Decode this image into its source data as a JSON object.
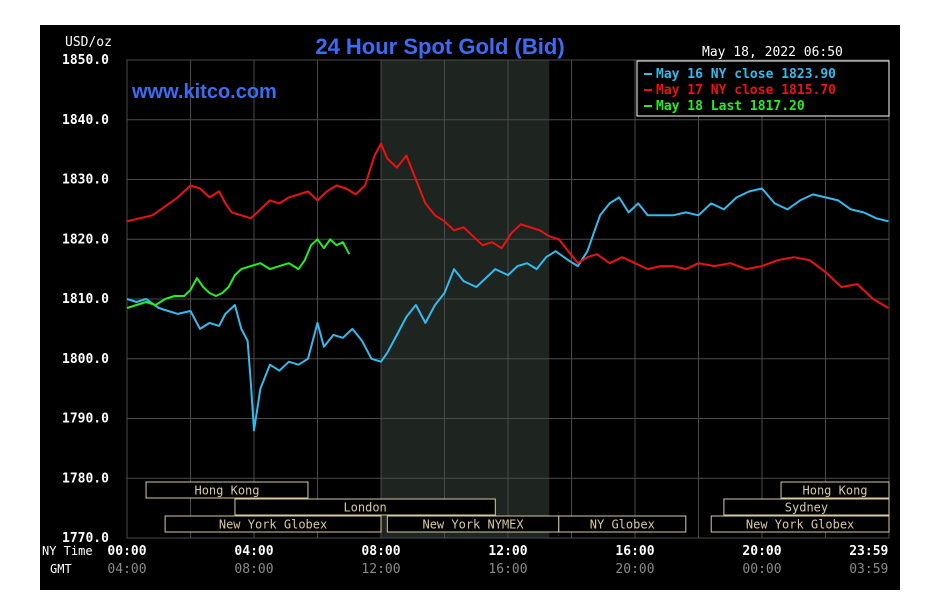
{
  "chart_data": {
    "type": "line",
    "title": "24 Hour Spot Gold (Bid)",
    "unit": "USD/oz",
    "source": "www.kitco.com",
    "datetime": "May 18, 2022 06:50",
    "ylim": [
      1770,
      1850
    ],
    "y_ticks": [
      "1850.0",
      "1840.0",
      "1830.0",
      "1820.0",
      "1810.0",
      "1800.0",
      "1790.0",
      "1780.0",
      "1770.0"
    ],
    "x_row_label_ny": "NY Time",
    "x_row_label_gmt": "GMT",
    "x_ticks_ny": [
      "00:00",
      "04:00",
      "08:00",
      "12:00",
      "16:00",
      "20:00",
      "23:59"
    ],
    "x_ticks_gmt": [
      "04:00",
      "08:00",
      "12:00",
      "16:00",
      "20:00",
      "00:00",
      "03:59"
    ],
    "x_tick_hours": [
      0,
      4,
      8,
      12,
      16,
      20,
      23.98
    ],
    "grid": true,
    "legend_position": "top-right",
    "nymex_shade": [
      8,
      13.3
    ],
    "sessions": [
      {
        "label": "Hong Kong",
        "start": 0.6,
        "end": 5.7,
        "row": 0
      },
      {
        "label": "London",
        "start": 3.4,
        "end": 11.6,
        "row": 1
      },
      {
        "label": "New York Globex",
        "start": 1.2,
        "end": 8.0,
        "row": 2
      },
      {
        "label": "New York NYMEX",
        "start": 8.2,
        "end": 13.6,
        "row": 2
      },
      {
        "label": "NY Globex",
        "start": 13.6,
        "end": 17.6,
        "row": 2
      },
      {
        "label": "Hong Kong",
        "start": 20.6,
        "end": 24.0,
        "row": 0
      },
      {
        "label": "Sydney",
        "start": 18.8,
        "end": 24.0,
        "row": 1
      },
      {
        "label": "New York Globex",
        "start": 18.4,
        "end": 24.0,
        "row": 2
      }
    ],
    "series": [
      {
        "name": "May 16 NY close 1823.90",
        "color": "#33bbee",
        "x": [
          0,
          0.3,
          0.6,
          1.0,
          1.3,
          1.6,
          2.0,
          2.3,
          2.6,
          2.9,
          3.1,
          3.4,
          3.6,
          3.8,
          3.9,
          4.0,
          4.2,
          4.5,
          4.8,
          5.1,
          5.4,
          5.7,
          6.0,
          6.2,
          6.5,
          6.8,
          7.1,
          7.4,
          7.7,
          8.0,
          8.2,
          8.5,
          8.8,
          9.1,
          9.4,
          9.7,
          10.0,
          10.3,
          10.6,
          11.0,
          11.3,
          11.6,
          12.0,
          12.3,
          12.6,
          12.9,
          13.2,
          13.5,
          13.9,
          14.2,
          14.5,
          14.7,
          14.9,
          15.2,
          15.5,
          15.8,
          16.1,
          16.4,
          16.8,
          17.2,
          17.6,
          18.0,
          18.4,
          18.8,
          19.2,
          19.6,
          20.0,
          20.4,
          20.8,
          21.2,
          21.6,
          22.0,
          22.4,
          22.8,
          23.2,
          23.6,
          23.98
        ],
        "values": [
          1810.0,
          1809.5,
          1810.0,
          1808.5,
          1808.0,
          1807.5,
          1808.0,
          1805.0,
          1806.0,
          1805.5,
          1807.5,
          1809.0,
          1805.0,
          1803.0,
          1796.0,
          1788.0,
          1795.0,
          1799.0,
          1798.0,
          1799.5,
          1799.0,
          1800.0,
          1806.0,
          1802.0,
          1804.0,
          1803.5,
          1805.0,
          1803.0,
          1800.0,
          1799.5,
          1801.0,
          1804.0,
          1807.0,
          1809.0,
          1806.0,
          1809.0,
          1811.0,
          1815.0,
          1813.0,
          1812.0,
          1813.5,
          1815.0,
          1814.0,
          1815.5,
          1816.0,
          1815.0,
          1817.0,
          1818.0,
          1816.5,
          1815.5,
          1818.0,
          1821.0,
          1824.0,
          1826.0,
          1827.0,
          1824.5,
          1826.0,
          1824.0,
          1824.0,
          1824.0,
          1824.5,
          1824.0,
          1826.0,
          1825.0,
          1827.0,
          1828.0,
          1828.5,
          1826.0,
          1825.0,
          1826.5,
          1827.5,
          1827.0,
          1826.5,
          1825.0,
          1824.5,
          1823.5,
          1823.0
        ]
      },
      {
        "name": "May 17 NY close 1815.70",
        "color": "#ee1111",
        "x": [
          0,
          0.4,
          0.8,
          1.2,
          1.6,
          2.0,
          2.3,
          2.6,
          2.9,
          3.1,
          3.3,
          3.6,
          3.9,
          4.2,
          4.5,
          4.8,
          5.1,
          5.4,
          5.7,
          6.0,
          6.3,
          6.6,
          6.9,
          7.2,
          7.5,
          7.8,
          8.0,
          8.2,
          8.5,
          8.8,
          9.1,
          9.4,
          9.7,
          10.0,
          10.3,
          10.6,
          10.9,
          11.2,
          11.5,
          11.8,
          12.1,
          12.4,
          12.7,
          13.0,
          13.3,
          13.6,
          13.9,
          14.2,
          14.5,
          14.8,
          15.2,
          15.6,
          16.0,
          16.4,
          16.8,
          17.2,
          17.6,
          18.0,
          18.5,
          19.0,
          19.5,
          20.0,
          20.5,
          21.0,
          21.5,
          22.0,
          22.5,
          23.0,
          23.5,
          23.98
        ],
        "values": [
          1823.0,
          1823.5,
          1824.0,
          1825.5,
          1827.0,
          1829.0,
          1828.5,
          1827.0,
          1828.0,
          1826.0,
          1824.5,
          1824.0,
          1823.5,
          1825.0,
          1826.5,
          1826.0,
          1827.0,
          1827.5,
          1828.0,
          1826.5,
          1828.0,
          1829.0,
          1828.5,
          1827.5,
          1829.0,
          1834.0,
          1836.0,
          1833.5,
          1832.0,
          1834.0,
          1830.0,
          1826.0,
          1824.0,
          1823.0,
          1821.5,
          1822.0,
          1820.5,
          1819.0,
          1819.5,
          1818.5,
          1821.0,
          1822.5,
          1822.0,
          1821.5,
          1820.5,
          1820.0,
          1818.0,
          1816.0,
          1817.0,
          1817.5,
          1816.0,
          1817.0,
          1816.0,
          1815.0,
          1815.5,
          1815.5,
          1815.0,
          1816.0,
          1815.5,
          1816.0,
          1815.0,
          1815.5,
          1816.5,
          1817.0,
          1816.5,
          1814.5,
          1812.0,
          1812.5,
          1810.0,
          1808.5
        ]
      },
      {
        "name": "May 18 Last 1817.20",
        "color": "#22ee22",
        "x": [
          0,
          0.3,
          0.6,
          0.9,
          1.2,
          1.5,
          1.8,
          2.0,
          2.2,
          2.4,
          2.6,
          2.8,
          3.0,
          3.2,
          3.4,
          3.6,
          3.9,
          4.2,
          4.5,
          4.8,
          5.1,
          5.4,
          5.6,
          5.8,
          6.0,
          6.2,
          6.4,
          6.6,
          6.8,
          7.0
        ],
        "values": [
          1808.5,
          1809.0,
          1809.5,
          1809.0,
          1810.0,
          1810.5,
          1810.5,
          1811.5,
          1813.5,
          1812.0,
          1811.0,
          1810.5,
          1811.0,
          1812.0,
          1814.0,
          1815.0,
          1815.5,
          1816.0,
          1815.0,
          1815.5,
          1816.0,
          1815.0,
          1816.5,
          1819.0,
          1820.0,
          1818.5,
          1820.0,
          1819.0,
          1819.5,
          1817.5
        ]
      }
    ]
  }
}
